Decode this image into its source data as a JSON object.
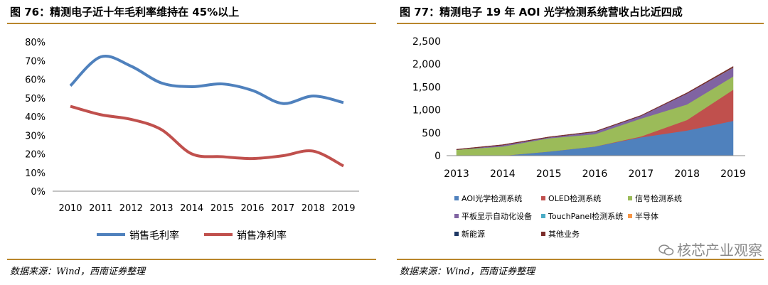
{
  "left_panel": {
    "title": "图 76：精测电子近十年毛利率维持在 45%以上",
    "source": "数据来源：Wind，西南证券整理"
  },
  "right_panel": {
    "title": "图 77：精测电子 19 年 AOI 光学检测系统营收占比近四成",
    "source": "数据来源：Wind，西南证券整理",
    "watermark": "核芯产业观察"
  },
  "chart_data": [
    {
      "type": "line",
      "title": "图 76：精测电子近十年毛利率维持在 45%以上",
      "x": [
        "2010",
        "2011",
        "2012",
        "2013",
        "2014",
        "2015",
        "2016",
        "2017",
        "2018",
        "2019"
      ],
      "y_ticks": [
        "0%",
        "10%",
        "20%",
        "30%",
        "40%",
        "50%",
        "60%",
        "70%",
        "80%"
      ],
      "ylim": [
        0,
        80
      ],
      "grid": false,
      "legend_position": "bottom",
      "series": [
        {
          "name": "销售毛利率",
          "color": "#4f81bd",
          "values": [
            56.5,
            72,
            67,
            58,
            56,
            57.5,
            54,
            47,
            51,
            47.5
          ]
        },
        {
          "name": "销售净利率",
          "color": "#c0504d",
          "values": [
            45.5,
            41,
            38.5,
            33,
            20,
            18.5,
            17.5,
            19,
            21.5,
            13.5
          ]
        }
      ]
    },
    {
      "type": "area",
      "stacked": true,
      "title": "图 77：精测电子 19 年 AOI 光学检测系统营收占比近四成",
      "x": [
        "2013",
        "2014",
        "2015",
        "2016",
        "2017",
        "2018",
        "2019"
      ],
      "y_ticks": [
        "0",
        "500",
        "1,000",
        "1,500",
        "2,000",
        "2,500"
      ],
      "ylim": [
        0,
        2500
      ],
      "grid": false,
      "legend_position": "bottom",
      "series": [
        {
          "name": "AOI光学检测系统",
          "color": "#4f81bd",
          "values": [
            0,
            0,
            90,
            200,
            400,
            550,
            760
          ]
        },
        {
          "name": "OLED检测系统",
          "color": "#c0504d",
          "values": [
            0,
            0,
            0,
            0,
            20,
            230,
            680
          ]
        },
        {
          "name": "信号检测系统",
          "color": "#9bbb59",
          "values": [
            130,
            200,
            290,
            270,
            390,
            340,
            290
          ]
        },
        {
          "name": "平板显示自动化设备",
          "color": "#8064a2",
          "values": [
            0,
            30,
            20,
            50,
            60,
            240,
            190
          ]
        },
        {
          "name": "TouchPanel检测系统",
          "color": "#4bacc6",
          "values": [
            0,
            0,
            0,
            0,
            0,
            0,
            0
          ]
        },
        {
          "name": "半导体",
          "color": "#f79646",
          "values": [
            0,
            0,
            0,
            0,
            0,
            0,
            5
          ]
        },
        {
          "name": "新能源",
          "color": "#1f3864",
          "values": [
            0,
            0,
            0,
            0,
            0,
            0,
            5
          ]
        },
        {
          "name": "其他业务",
          "color": "#7b2c2a",
          "values": [
            10,
            10,
            10,
            10,
            10,
            15,
            20
          ]
        }
      ]
    }
  ]
}
